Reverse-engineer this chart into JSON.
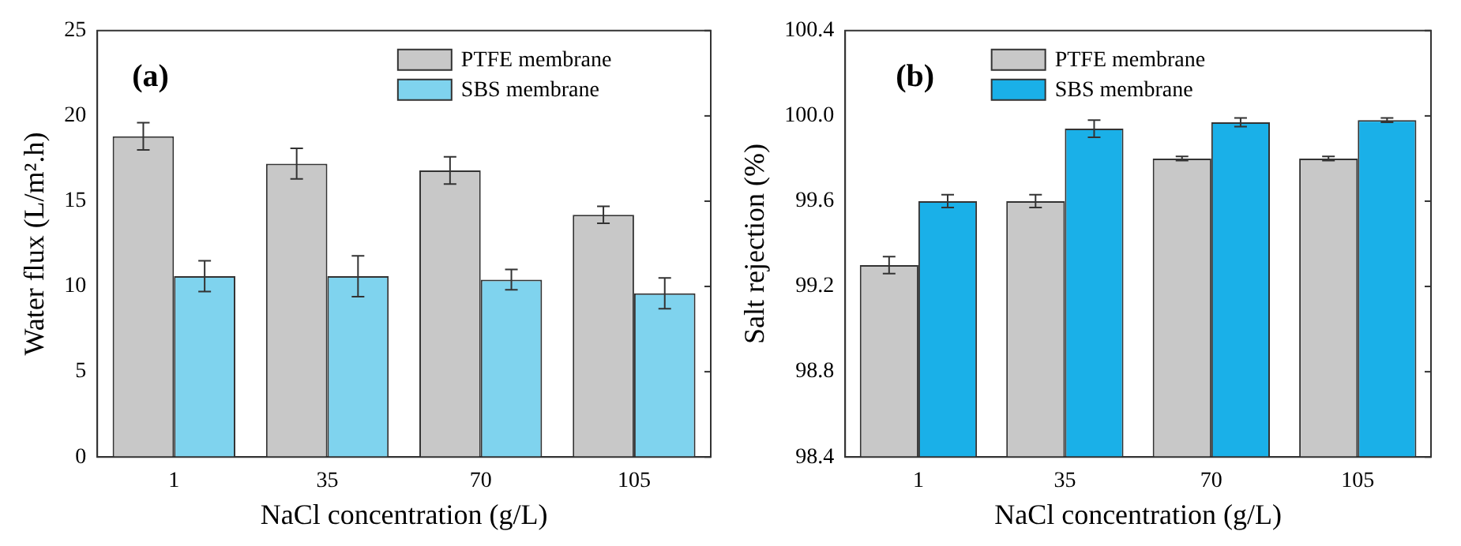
{
  "chart_data": [
    {
      "type": "bar",
      "categories": [
        "1",
        "35",
        "70",
        "105"
      ],
      "xlabel": "NaCl concentration (g/L)",
      "ylabel": "Water flux (L/m².h)",
      "ylim": [
        0,
        25
      ],
      "yticks": [
        0,
        5,
        10,
        15,
        20,
        25
      ],
      "legend": "top right",
      "grid": false,
      "annotations": [
        "(a)"
      ],
      "series": [
        {
          "name": "PTFE membrane",
          "color": "#c8c8c8",
          "values": [
            18.8,
            17.2,
            16.8,
            14.2
          ],
          "errors": [
            0.8,
            0.9,
            0.8,
            0.5
          ]
        },
        {
          "name": "SBS membrane",
          "color": "#7fd3ee",
          "values": [
            10.6,
            10.6,
            10.4,
            9.6
          ],
          "errors": [
            0.9,
            1.2,
            0.6,
            0.9
          ]
        }
      ]
    },
    {
      "type": "bar",
      "categories": [
        "1",
        "35",
        "70",
        "105"
      ],
      "xlabel": "NaCl concentration (g/L)",
      "ylabel": "Salt rejection (%)",
      "ylim": [
        98.4,
        100.4
      ],
      "yticks": [
        {
          "value": 98.4,
          "label": "98.4"
        },
        {
          "value": 98.8,
          "label": "98.8"
        },
        {
          "value": 99.2,
          "label": "99.2"
        },
        {
          "value": 99.6,
          "label": "99.6"
        },
        {
          "value": 100,
          "label": "100.0"
        },
        {
          "value": 100.4,
          "label": "100.4"
        }
      ],
      "legend": "top",
      "grid": false,
      "annotations": [
        "(b)"
      ],
      "series": [
        {
          "name": "PTFE membrane",
          "color": "#c8c8c8",
          "values": [
            99.3,
            99.6,
            99.8,
            99.8
          ],
          "errors": [
            0.04,
            0.03,
            0.01,
            0.01
          ]
        },
        {
          "name": "SBS membrane",
          "color": "#1ab0e8",
          "values": [
            99.6,
            99.94,
            99.97,
            99.98
          ],
          "errors": [
            0.03,
            0.04,
            0.02,
            0.01
          ]
        }
      ]
    }
  ]
}
